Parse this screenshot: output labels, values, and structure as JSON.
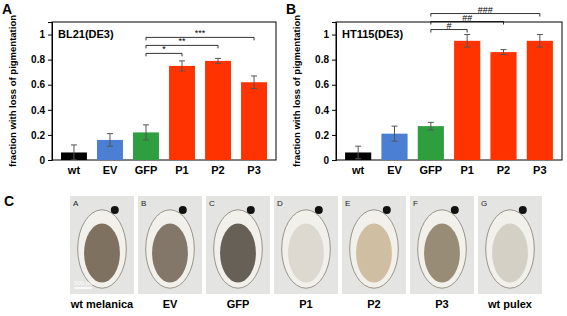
{
  "chart_data": [
    {
      "type": "bar",
      "panel_label": "A",
      "title": "BL21(DE3)",
      "y_label": "fraction with loss of pigmentation",
      "categories": [
        "wt",
        "EV",
        "GFP",
        "P1",
        "P2",
        "P3"
      ],
      "values": [
        0.06,
        0.16,
        0.22,
        0.75,
        0.79,
        0.62
      ],
      "errors": [
        0.06,
        0.05,
        0.06,
        0.04,
        0.02,
        0.05
      ],
      "colors": [
        "#000000",
        "#4a7fd4",
        "#2e9e3e",
        "#ff3300",
        "#ff3300",
        "#ff3300"
      ],
      "ylim": [
        0,
        1.1
      ],
      "yticks": [
        0,
        0.2,
        0.4,
        0.6,
        0.8,
        1
      ],
      "annotations": [
        {
          "text": "*",
          "from": "GFP",
          "to": "P1"
        },
        {
          "text": "**",
          "from": "GFP",
          "to": "P2"
        },
        {
          "text": "***",
          "from": "GFP",
          "to": "P3"
        }
      ]
    },
    {
      "type": "bar",
      "panel_label": "B",
      "title": "HT115(DE3)",
      "y_label": "fraction with loss of pigmentation",
      "categories": [
        "wt",
        "EV",
        "GFP",
        "P1",
        "P2",
        "P3"
      ],
      "values": [
        0.06,
        0.21,
        0.27,
        0.95,
        0.86,
        0.95
      ],
      "errors": [
        0.05,
        0.06,
        0.03,
        0.05,
        0.02,
        0.05
      ],
      "colors": [
        "#000000",
        "#4a7fd4",
        "#2e9e3e",
        "#ff3300",
        "#ff3300",
        "#ff3300"
      ],
      "ylim": [
        0,
        1.1
      ],
      "yticks": [
        0,
        0.2,
        0.4,
        0.6,
        0.8,
        1
      ],
      "annotations": [
        {
          "text": "#",
          "from": "GFP",
          "to": "P1"
        },
        {
          "text": "##",
          "from": "GFP",
          "to": "P2"
        },
        {
          "text": "###",
          "from": "GFP",
          "to": "P3"
        }
      ]
    }
  ],
  "panel_c": {
    "label": "C",
    "scale_bar": "500 µm",
    "images": [
      {
        "letter": "A",
        "caption": "wt melanica"
      },
      {
        "letter": "B",
        "caption": "EV"
      },
      {
        "letter": "C",
        "caption": "GFP"
      },
      {
        "letter": "D",
        "caption": "P1"
      },
      {
        "letter": "E",
        "caption": "P2"
      },
      {
        "letter": "F",
        "caption": "P3"
      },
      {
        "letter": "G",
        "caption": "wt pulex"
      }
    ]
  }
}
